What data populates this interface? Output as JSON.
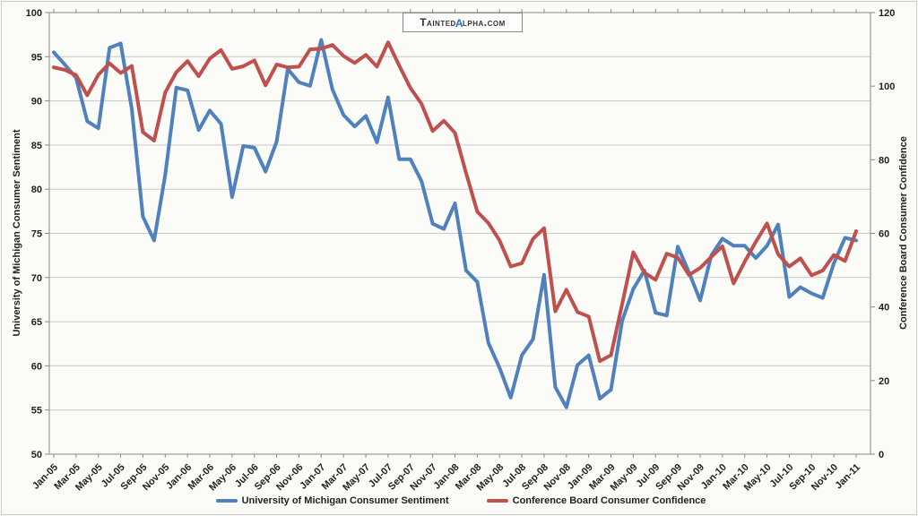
{
  "logo": {
    "pre": "Tainted",
    "alpha": "α",
    "post": "lpha.com"
  },
  "chart_data": {
    "type": "line",
    "x": [
      "Jan-05",
      "Feb-05",
      "Mar-05",
      "Apr-05",
      "May-05",
      "Jun-05",
      "Jul-05",
      "Aug-05",
      "Sep-05",
      "Oct-05",
      "Nov-05",
      "Dec-05",
      "Jan-06",
      "Feb-06",
      "Mar-06",
      "Apr-06",
      "May-06",
      "Jun-06",
      "Jul-06",
      "Aug-06",
      "Sep-06",
      "Oct-06",
      "Nov-06",
      "Dec-06",
      "Jan-07",
      "Feb-07",
      "Mar-07",
      "Apr-07",
      "May-07",
      "Jun-07",
      "Jul-07",
      "Aug-07",
      "Sep-07",
      "Oct-07",
      "Nov-07",
      "Dec-07",
      "Jan-08",
      "Feb-08",
      "Mar-08",
      "Apr-08",
      "May-08",
      "Jun-08",
      "Jul-08",
      "Aug-08",
      "Sep-08",
      "Oct-08",
      "Nov-08",
      "Dec-08",
      "Jan-09",
      "Feb-09",
      "Mar-09",
      "Apr-09",
      "May-09",
      "Jun-09",
      "Jul-09",
      "Aug-09",
      "Sep-09",
      "Oct-09",
      "Nov-09",
      "Dec-09",
      "Jan-10",
      "Feb-10",
      "Mar-10",
      "Apr-10",
      "May-10",
      "Jun-10",
      "Jul-10",
      "Aug-10",
      "Sep-10",
      "Oct-10",
      "Nov-10",
      "Dec-10",
      "Jan-11"
    ],
    "x_label_step": 2,
    "series": [
      {
        "name": "University of Michigan Consumer Sentiment",
        "axis": "left",
        "color": "#4F81BD",
        "values": [
          95.5,
          94.1,
          92.6,
          87.7,
          86.9,
          96.0,
          96.5,
          89.1,
          76.9,
          74.2,
          81.6,
          91.5,
          91.2,
          86.7,
          88.9,
          87.4,
          79.1,
          84.9,
          84.7,
          82.0,
          85.4,
          93.6,
          92.1,
          91.7,
          96.9,
          91.3,
          88.4,
          87.1,
          88.3,
          85.3,
          90.4,
          83.4,
          83.4,
          80.9,
          76.1,
          75.5,
          78.4,
          70.8,
          69.5,
          62.6,
          59.8,
          56.4,
          61.2,
          63.0,
          70.3,
          57.6,
          55.3,
          60.1,
          61.2,
          56.3,
          57.3,
          65.1,
          68.7,
          70.8,
          66.0,
          65.7,
          73.5,
          70.6,
          67.4,
          72.5,
          74.4,
          73.6,
          73.6,
          72.2,
          73.6,
          76.0,
          67.8,
          68.9,
          68.2,
          67.7,
          71.6,
          74.5,
          74.2
        ]
      },
      {
        "name": "Conference Board Consumer Confidence",
        "axis": "right",
        "color": "#C0504D",
        "values": [
          105.1,
          104.4,
          103.0,
          97.5,
          103.1,
          106.2,
          103.6,
          105.5,
          87.5,
          85.2,
          98.3,
          103.8,
          106.8,
          102.7,
          107.5,
          109.8,
          104.7,
          105.4,
          107.0,
          100.2,
          105.9,
          105.1,
          105.3,
          110.0,
          110.2,
          111.2,
          108.2,
          106.3,
          108.5,
          105.3,
          111.9,
          105.6,
          99.5,
          95.2,
          87.8,
          90.6,
          87.3,
          76.4,
          65.9,
          62.8,
          58.1,
          51.0,
          51.9,
          58.5,
          61.4,
          38.8,
          44.7,
          38.6,
          37.4,
          25.3,
          26.9,
          40.8,
          54.9,
          49.3,
          47.4,
          54.5,
          53.4,
          48.7,
          50.6,
          53.6,
          56.5,
          46.4,
          52.3,
          57.7,
          62.7,
          54.3,
          51.0,
          53.2,
          48.6,
          49.9,
          54.1,
          52.5,
          60.6
        ]
      }
    ],
    "left_axis": {
      "title": "University of Michigan Consumer Sentiment",
      "min": 50,
      "max": 100,
      "step": 5,
      "tick_labels": [
        "50",
        "55",
        "60",
        "65",
        "70",
        "75",
        "80",
        "85",
        "90",
        "95",
        "100"
      ]
    },
    "right_axis": {
      "title": "Conference Board Consumer Confidence",
      "min": 0,
      "max": 120,
      "step": 20,
      "tick_labels": [
        "0",
        "20",
        "40",
        "60",
        "80",
        "100",
        "120"
      ]
    },
    "grid": true,
    "legend_position": "bottom",
    "colors": {
      "grid": "#c9c9c9",
      "axis": "#8a8a8a",
      "text": "#1f1f1f"
    }
  }
}
